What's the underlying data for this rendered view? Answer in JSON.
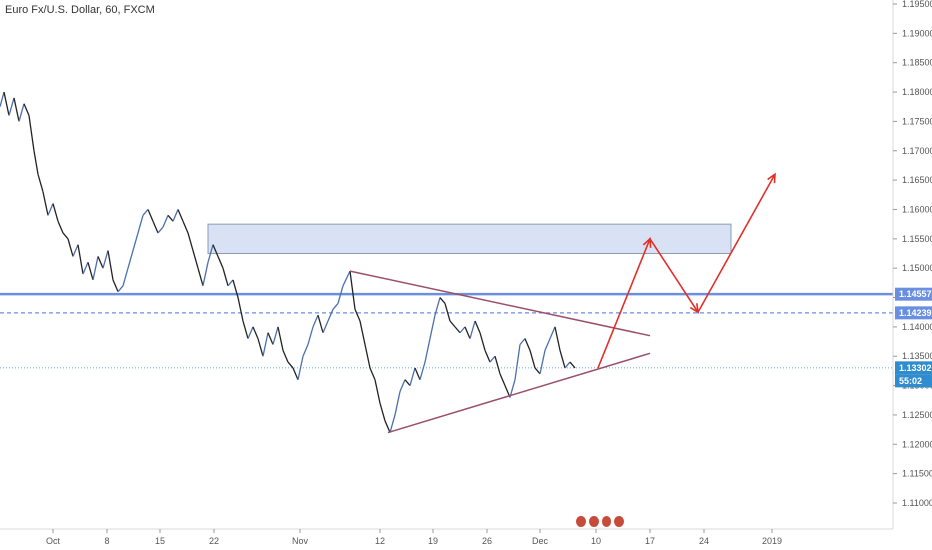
{
  "header": {
    "symbol_title": "Euro Fx/U.S. Dollar, 60, FXCM"
  },
  "price_axis": {
    "ticks": [
      "1.19500",
      "1.19000",
      "1.18500",
      "1.18000",
      "1.17500",
      "1.17000",
      "1.16500",
      "1.16000",
      "1.15500",
      "1.15000",
      "1.14500",
      "1.14000",
      "1.13500",
      "1.13000",
      "1.12500",
      "1.12000",
      "1.11500",
      "1.11000"
    ]
  },
  "time_axis": {
    "ticks": [
      "Oct",
      "8",
      "15",
      "22",
      "Nov",
      "12",
      "19",
      "26",
      "Dec",
      "10",
      "17",
      "24",
      "2019"
    ]
  },
  "levels": {
    "upper_line_label": "1.14557",
    "dashed_line_label": "1.14239",
    "current_price_label": "1.13302",
    "countdown_label": "55:02"
  },
  "colors": {
    "level_blue": "#6b8fe0",
    "price_badge": "#2f8ccf",
    "trendline": "#9a4f67",
    "forecast_arrow": "#e0302a",
    "zone_fill": "#d8e2f4",
    "candle_up": "#4a6fb0",
    "candle_down": "#222222"
  },
  "chart_data": {
    "type": "line",
    "title": "Euro Fx/U.S. Dollar, 60, FXCM",
    "xlabel": "",
    "ylabel": "",
    "ylim": [
      1.1075,
      1.195
    ],
    "x_ticks": [
      "Oct",
      "8",
      "15",
      "22",
      "Nov",
      "12",
      "19",
      "26",
      "Dec",
      "10",
      "17",
      "24",
      "2019"
    ],
    "series": [
      {
        "values": [
          [
            0,
            1.1775
          ],
          [
            4,
            1.18
          ],
          [
            9,
            1.176
          ],
          [
            14,
            1.179
          ],
          [
            19,
            1.175
          ],
          [
            24,
            1.178
          ],
          [
            29,
            1.176
          ],
          [
            34,
            1.17
          ],
          [
            38,
            1.166
          ],
          [
            43,
            1.163
          ],
          [
            48,
            1.159
          ],
          [
            53,
            1.161
          ],
          [
            58,
            1.158
          ],
          [
            63,
            1.156
          ],
          [
            68,
            1.155
          ],
          [
            73,
            1.152
          ],
          [
            78,
            1.154
          ],
          [
            83,
            1.149
          ],
          [
            88,
            1.151
          ],
          [
            93,
            1.148
          ],
          [
            98,
            1.152
          ],
          [
            103,
            1.15
          ],
          [
            108,
            1.153
          ],
          [
            113,
            1.148
          ],
          [
            118,
            1.146
          ],
          [
            123,
            1.147
          ],
          [
            128,
            1.15
          ],
          [
            133,
            1.153
          ],
          [
            138,
            1.156
          ],
          [
            143,
            1.159
          ],
          [
            148,
            1.16
          ],
          [
            153,
            1.158
          ],
          [
            158,
            1.156
          ],
          [
            163,
            1.157
          ],
          [
            168,
            1.159
          ],
          [
            173,
            1.158
          ],
          [
            178,
            1.16
          ],
          [
            183,
            1.158
          ],
          [
            188,
            1.156
          ],
          [
            193,
            1.153
          ],
          [
            198,
            1.15
          ],
          [
            203,
            1.147
          ],
          [
            208,
            1.151
          ],
          [
            213,
            1.154
          ],
          [
            218,
            1.152
          ],
          [
            223,
            1.15
          ],
          [
            228,
            1.147
          ],
          [
            233,
            1.148
          ],
          [
            238,
            1.145
          ],
          [
            243,
            1.141
          ],
          [
            248,
            1.138
          ],
          [
            253,
            1.14
          ],
          [
            258,
            1.138
          ],
          [
            263,
            1.135
          ],
          [
            268,
            1.139
          ],
          [
            273,
            1.137
          ],
          [
            278,
            1.14
          ],
          [
            283,
            1.136
          ],
          [
            288,
            1.134
          ],
          [
            293,
            1.133
          ],
          [
            298,
            1.131
          ],
          [
            303,
            1.135
          ],
          [
            308,
            1.137
          ],
          [
            313,
            1.14
          ],
          [
            318,
            1.142
          ],
          [
            323,
            1.139
          ],
          [
            328,
            1.141
          ],
          [
            333,
            1.143
          ],
          [
            338,
            1.144
          ],
          [
            343,
            1.147
          ],
          [
            350,
            1.1495
          ],
          [
            355,
            1.143
          ],
          [
            360,
            1.141
          ],
          [
            365,
            1.137
          ],
          [
            370,
            1.133
          ],
          [
            375,
            1.131
          ],
          [
            380,
            1.127
          ],
          [
            385,
            1.124
          ],
          [
            390,
            1.122
          ],
          [
            395,
            1.125
          ],
          [
            400,
            1.129
          ],
          [
            405,
            1.131
          ],
          [
            410,
            1.13
          ],
          [
            415,
            1.133
          ],
          [
            420,
            1.131
          ],
          [
            425,
            1.134
          ],
          [
            430,
            1.138
          ],
          [
            435,
            1.142
          ],
          [
            440,
            1.145
          ],
          [
            445,
            1.144
          ],
          [
            450,
            1.141
          ],
          [
            455,
            1.14
          ],
          [
            460,
            1.139
          ],
          [
            465,
            1.14
          ],
          [
            470,
            1.138
          ],
          [
            475,
            1.141
          ],
          [
            480,
            1.139
          ],
          [
            485,
            1.136
          ],
          [
            490,
            1.134
          ],
          [
            495,
            1.135
          ],
          [
            500,
            1.132
          ],
          [
            505,
            1.13
          ],
          [
            510,
            1.128
          ],
          [
            515,
            1.131
          ],
          [
            520,
            1.137
          ],
          [
            525,
            1.138
          ],
          [
            530,
            1.136
          ],
          [
            535,
            1.133
          ],
          [
            540,
            1.132
          ],
          [
            545,
            1.136
          ],
          [
            550,
            1.138
          ],
          [
            555,
            1.14
          ],
          [
            560,
            1.136
          ],
          [
            565,
            1.133
          ],
          [
            570,
            1.134
          ],
          [
            575,
            1.133
          ]
        ]
      }
    ],
    "annotations": {
      "resistance_zone": [
        1.1525,
        1.1575
      ],
      "triangle_upper": [
        [
          350,
          1.1495
        ],
        [
          650,
          1.1385
        ]
      ],
      "triangle_lower": [
        [
          388,
          1.122
        ],
        [
          650,
          1.1355
        ]
      ],
      "forecast_path": [
        [
          598,
          1.133
        ],
        [
          650,
          1.155
        ],
        [
          698,
          1.1425
        ],
        [
          775,
          1.166
        ]
      ]
    }
  }
}
